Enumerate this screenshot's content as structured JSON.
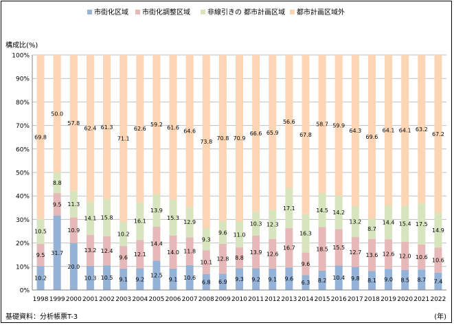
{
  "chart_data": {
    "type": "bar",
    "stacked": true,
    "percent": true,
    "ylabel": "構成比(%)",
    "xlabel": "(年)",
    "source_note": "基礎資料：分析帳票T-3",
    "ylim": [
      0,
      100
    ],
    "yticks": [
      "0%",
      "10%",
      "20%",
      "30%",
      "40%",
      "50%",
      "60%",
      "70%",
      "80%",
      "90%",
      "100%"
    ],
    "legend_position": "top",
    "categories": [
      "1998",
      "1999",
      "2000",
      "2001",
      "2002",
      "2003",
      "2004",
      "2005",
      "2006",
      "2007",
      "2008",
      "2009",
      "2010",
      "2011",
      "2012",
      "2013",
      "2014",
      "2015",
      "2016",
      "2017",
      "2018",
      "2019",
      "2020",
      "2021",
      "2022"
    ],
    "series": [
      {
        "name": "市街化区域",
        "color": "#95b3d7",
        "values": [
          10.2,
          31.7,
          20.0,
          10.3,
          10.5,
          9.1,
          9.2,
          12.5,
          9.1,
          10.6,
          6.8,
          6.9,
          9.3,
          9.2,
          9.1,
          9.6,
          6.3,
          8.2,
          10.4,
          9.8,
          8.1,
          9.0,
          8.5,
          8.7,
          7.4
        ],
        "labels": [
          "10.2",
          "31.7",
          "20.0",
          "10.3",
          "10.5",
          "9.1",
          "9.2",
          "12.5",
          "9.1",
          "10.6",
          "6.8",
          "6.9",
          "9.3",
          "9.2",
          "9.1",
          "9.6",
          "6.3",
          "8.2",
          "10.4",
          "9.8",
          "8.1",
          "9.0",
          "8.5",
          "8.7",
          "7.4"
        ]
      },
      {
        "name": "市街化調整区域",
        "color": "#e6b9b8",
        "values": [
          9.5,
          9.5,
          10.9,
          13.2,
          12.4,
          9.6,
          12.1,
          14.4,
          14.0,
          11.8,
          10.1,
          12.8,
          8.8,
          13.9,
          12.6,
          16.7,
          9.6,
          18.5,
          15.5,
          12.7,
          13.6,
          12.6,
          12.0,
          10.6,
          10.6
        ],
        "labels": [
          "9.5",
          "9.5",
          "10.9",
          "13.2",
          "12.4",
          "9.6",
          "12.1",
          "14.4",
          "14.0",
          "11.8",
          "10.1",
          "12.8",
          "8.8",
          "13.9",
          "12.6",
          "16.7",
          "9.6",
          "18.5",
          "15.5",
          "12.7",
          "13.6",
          "12.6",
          "12.0",
          "10.6",
          "10.6"
        ]
      },
      {
        "name": "非線引きの 都市計画区域",
        "color": "#d7e4bd",
        "values": [
          10.5,
          8.8,
          11.3,
          14.1,
          15.8,
          10.2,
          16.1,
          13.9,
          15.3,
          12.9,
          9.3,
          9.6,
          11.0,
          10.3,
          12.3,
          17.1,
          16.3,
          14.5,
          14.2,
          13.2,
          8.7,
          14.4,
          15.4,
          17.5,
          14.9
        ],
        "labels": [
          "10.5",
          "8.8",
          "11.3",
          "14.1",
          "15.8",
          "10.2",
          "16.1",
          "13.9",
          "15.3",
          "12.9",
          "9.3",
          "9.6",
          "11.0",
          "10.3",
          "12.3",
          "17.1",
          "16.3",
          "14.5",
          "14.2",
          "13.2",
          "8.7",
          "14.4",
          "15.4",
          "17.5",
          "14.9"
        ]
      },
      {
        "name": "都市計画区域外",
        "color": "#fcd5b5",
        "values": [
          69.8,
          50.0,
          57.8,
          62.4,
          61.3,
          71.1,
          62.6,
          59.2,
          61.6,
          64.6,
          73.8,
          70.8,
          70.9,
          66.6,
          65.9,
          56.6,
          67.8,
          58.7,
          59.9,
          64.3,
          69.6,
          64.1,
          64.1,
          63.2,
          67.2
        ],
        "labels": [
          "69.8",
          "50.0",
          "57.8",
          "62.4",
          "61.3",
          "71.1",
          "62.6",
          "59.2",
          "61.6",
          "64.6",
          "73.8",
          "70.8",
          "70.9",
          "66.6",
          "65.9",
          "56.6",
          "67.8",
          "58.7",
          "59.9",
          "64.3",
          "69.6",
          "64.1",
          "64.1",
          "63.2",
          "67.2"
        ]
      }
    ]
  }
}
